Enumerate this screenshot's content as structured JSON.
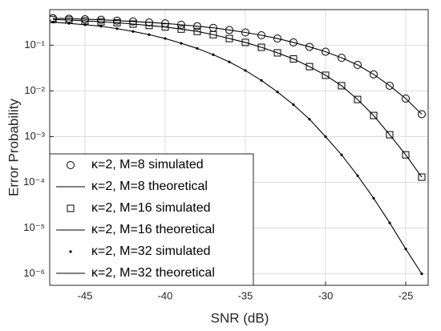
{
  "chart_data": {
    "type": "line",
    "xlabel": "SNR (dB)",
    "ylabel": "Error Probability",
    "x": [
      -47,
      -46,
      -45,
      -44,
      -43,
      -42,
      -41,
      -40,
      -39,
      -38,
      -37,
      -36,
      -35,
      -34,
      -33,
      -32,
      -31,
      -30,
      -29,
      -28,
      -27,
      -26,
      -25,
      -24
    ],
    "series": [
      {
        "name": "κ=2, M=8 simulated",
        "color": "#000000",
        "marker": "circle",
        "line": false,
        "values": [
          0.39,
          0.38,
          0.37,
          0.36,
          0.345,
          0.33,
          0.315,
          0.3,
          0.28,
          0.26,
          0.24,
          0.215,
          0.19,
          0.165,
          0.14,
          0.115,
          0.092,
          0.072,
          0.053,
          0.037,
          0.023,
          0.013,
          0.0068,
          0.0031
        ]
      },
      {
        "name": "κ=2, M=8 theoretical",
        "color": "#000000",
        "marker": "none",
        "line": true,
        "values": [
          0.39,
          0.38,
          0.37,
          0.36,
          0.345,
          0.33,
          0.315,
          0.3,
          0.28,
          0.26,
          0.24,
          0.215,
          0.19,
          0.165,
          0.14,
          0.115,
          0.092,
          0.072,
          0.053,
          0.037,
          0.023,
          0.013,
          0.0068,
          0.0031
        ]
      },
      {
        "name": "κ=2, M=16 simulated",
        "color": "#000000",
        "marker": "square",
        "line": false,
        "values": [
          0.365,
          0.355,
          0.34,
          0.325,
          0.31,
          0.29,
          0.27,
          0.25,
          0.225,
          0.2,
          0.17,
          0.14,
          0.115,
          0.09,
          0.068,
          0.05,
          0.034,
          0.022,
          0.013,
          0.0065,
          0.0029,
          0.0011,
          0.0004,
          0.00013
        ]
      },
      {
        "name": "κ=2, M=16 theoretical",
        "color": "#000000",
        "marker": "none",
        "line": true,
        "values": [
          0.365,
          0.355,
          0.34,
          0.325,
          0.31,
          0.29,
          0.27,
          0.25,
          0.225,
          0.2,
          0.17,
          0.14,
          0.115,
          0.09,
          0.068,
          0.05,
          0.034,
          0.022,
          0.013,
          0.0065,
          0.0029,
          0.0011,
          0.0004,
          0.00013
        ]
      },
      {
        "name": "κ=2, M=32 simulated",
        "color": "#000000",
        "marker": "dot",
        "line": false,
        "values": [
          0.32,
          0.3,
          0.28,
          0.26,
          0.23,
          0.2,
          0.17,
          0.14,
          0.11,
          0.085,
          0.062,
          0.043,
          0.028,
          0.017,
          0.0095,
          0.005,
          0.0024,
          0.001,
          0.0004,
          0.00014,
          4.5e-05,
          1.3e-05,
          3.5e-06,
          1e-06
        ]
      },
      {
        "name": "κ=2, M=32 theoretical",
        "color": "#000000",
        "marker": "none",
        "line": true,
        "values": [
          0.32,
          0.3,
          0.28,
          0.26,
          0.23,
          0.2,
          0.17,
          0.14,
          0.11,
          0.085,
          0.062,
          0.043,
          0.028,
          0.017,
          0.0095,
          0.005,
          0.0024,
          0.001,
          0.0004,
          0.00014,
          4.5e-05,
          1.3e-05,
          3.5e-06,
          1e-06
        ]
      }
    ],
    "xlim": [
      -47.2,
      -23.6
    ],
    "xticks": [
      -45,
      -40,
      -35,
      -30,
      -25
    ],
    "ylim": [
      5.6e-07,
      0.6
    ],
    "ylog": true,
    "yticks": [
      {
        "value": 1e-06,
        "label": "10⁻⁶"
      },
      {
        "value": 1e-05,
        "label": "10⁻⁵"
      },
      {
        "value": 0.0001,
        "label": "10⁻⁴"
      },
      {
        "value": 0.001,
        "label": "10⁻³"
      },
      {
        "value": 0.01,
        "label": "10⁻²"
      },
      {
        "value": 0.1,
        "label": "10⁻¹"
      }
    ],
    "grid": true,
    "legend": "lower left"
  }
}
